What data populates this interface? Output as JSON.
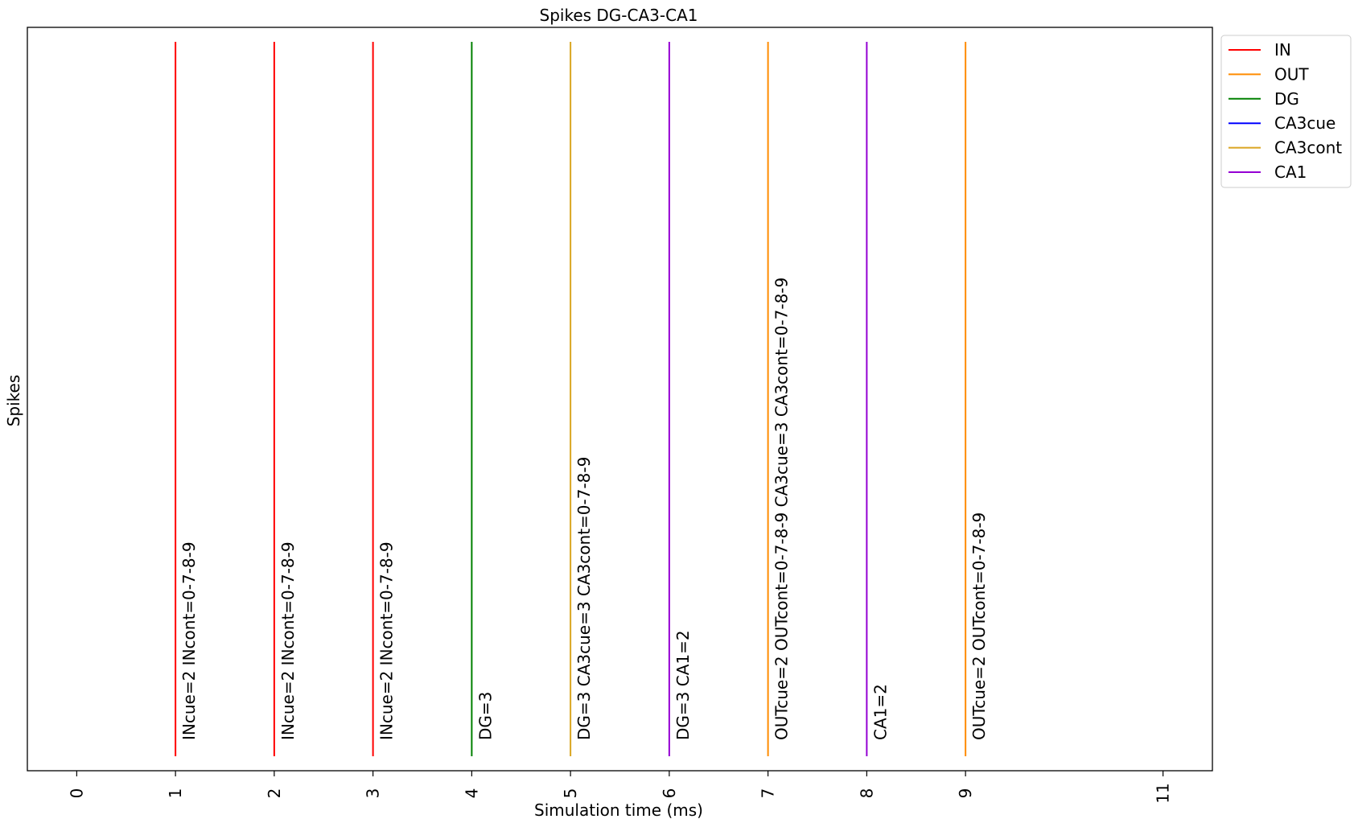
{
  "chart_data": {
    "type": "event-lines",
    "title": "Spikes DG-CA3-CA1",
    "xlabel": "Simulation time (ms)",
    "ylabel": "Spikes",
    "xlim": [
      -0.5,
      11.5
    ],
    "xticks": [
      0,
      1,
      2,
      3,
      4,
      5,
      6,
      7,
      8,
      9,
      11
    ],
    "tick_labels": [
      "0",
      "1",
      "2",
      "3",
      "4",
      "5",
      "6",
      "7",
      "8",
      "9",
      "11"
    ],
    "grid": false,
    "legend_position": "outside-right-top",
    "legend": [
      {
        "name": "IN",
        "color": "#ff0000"
      },
      {
        "name": "OUT",
        "color": "#ff8c00"
      },
      {
        "name": "DG",
        "color": "#008000"
      },
      {
        "name": "CA3cue",
        "color": "#0000ff"
      },
      {
        "name": "CA3cont",
        "color": "#daa520"
      },
      {
        "name": "CA1",
        "color": "#9400d3"
      }
    ],
    "events": [
      {
        "x": 1,
        "color": "#ff0000",
        "label": "INcue=2 INcont=0-7-8-9"
      },
      {
        "x": 2,
        "color": "#ff0000",
        "label": "INcue=2 INcont=0-7-8-9"
      },
      {
        "x": 3,
        "color": "#ff0000",
        "label": "INcue=2 INcont=0-7-8-9"
      },
      {
        "x": 4,
        "color": "#008000",
        "label": "DG=3"
      },
      {
        "x": 5,
        "color": "#daa520",
        "label": "DG=3 CA3cue=3 CA3cont=0-7-8-9"
      },
      {
        "x": 6,
        "color": "#9400d3",
        "label": "DG=3 CA1=2"
      },
      {
        "x": 7,
        "color": "#ff8c00",
        "label": "OUTcue=2 OUTcont=0-7-8-9 CA3cue=3 CA3cont=0-7-8-9"
      },
      {
        "x": 8,
        "color": "#9400d3",
        "label": "CA1=2"
      },
      {
        "x": 9,
        "color": "#ff8c00",
        "label": "OUTcue=2 OUTcont=0-7-8-9"
      }
    ]
  }
}
